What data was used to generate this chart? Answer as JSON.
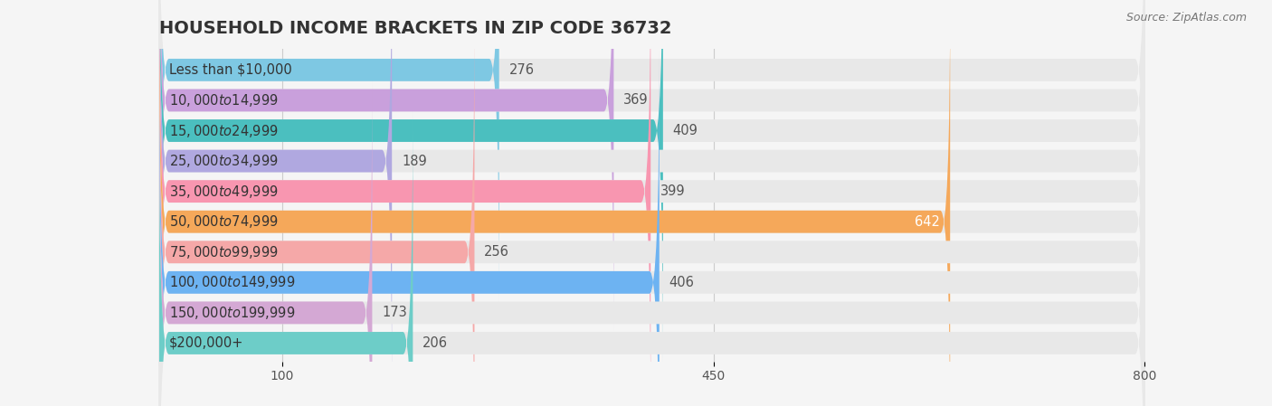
{
  "title": "HOUSEHOLD INCOME BRACKETS IN ZIP CODE 36732",
  "source": "Source: ZipAtlas.com",
  "categories": [
    "Less than $10,000",
    "$10,000 to $14,999",
    "$15,000 to $24,999",
    "$25,000 to $34,999",
    "$35,000 to $49,999",
    "$50,000 to $74,999",
    "$75,000 to $99,999",
    "$100,000 to $149,999",
    "$150,000 to $199,999",
    "$200,000+"
  ],
  "values": [
    276,
    369,
    409,
    189,
    399,
    642,
    256,
    406,
    173,
    206
  ],
  "bar_colors": [
    "#7ec8e3",
    "#c9a0dc",
    "#4bbfbf",
    "#b0a8e0",
    "#f896b0",
    "#f5a85a",
    "#f5a8a8",
    "#6db3f2",
    "#d4a8d4",
    "#6dcdc8"
  ],
  "label_colors": [
    "#555555",
    "#555555",
    "#555555",
    "#555555",
    "#555555",
    "#ffffff",
    "#555555",
    "#555555",
    "#555555",
    "#555555"
  ],
  "background_color": "#f5f5f5",
  "bar_background": "#e8e8e8",
  "xlim": [
    0,
    800
  ],
  "xticks": [
    100,
    450,
    800
  ],
  "title_fontsize": 14,
  "label_fontsize": 10.5,
  "value_fontsize": 10.5
}
